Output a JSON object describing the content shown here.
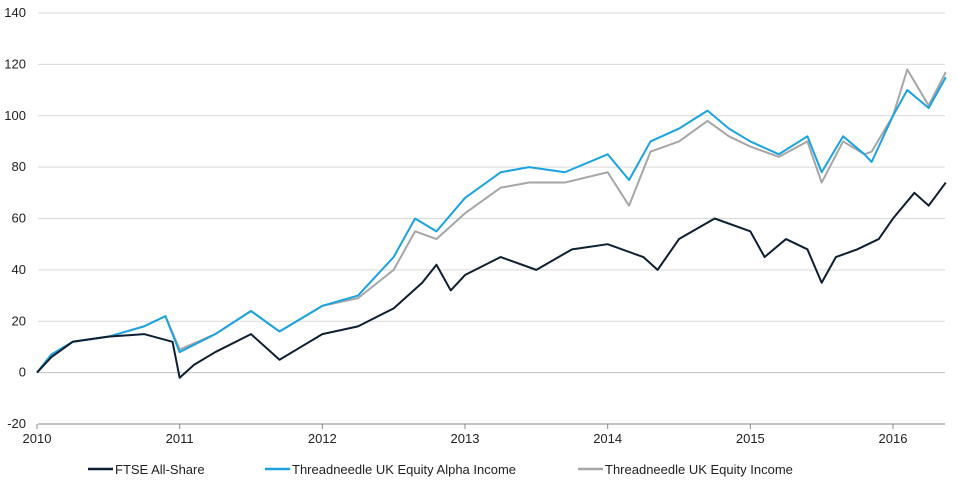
{
  "chart_data": {
    "type": "line",
    "title": "",
    "xlabel": "",
    "ylabel": "",
    "xlim": [
      2010,
      2016.4
    ],
    "ylim": [
      -20,
      140
    ],
    "yticks": [
      -20,
      0,
      20,
      40,
      60,
      80,
      100,
      120,
      140
    ],
    "xticks": [
      2010,
      2011,
      2012,
      2013,
      2014,
      2015,
      2016
    ],
    "grid": true,
    "legend_position": "bottom",
    "series": [
      {
        "name": "FTSE All-Share",
        "color": "#0d1f33",
        "x": [
          2010,
          2010.1,
          2010.25,
          2010.5,
          2010.75,
          2010.95,
          2011.0,
          2011.1,
          2011.25,
          2011.5,
          2011.7,
          2011.85,
          2012.0,
          2012.25,
          2012.5,
          2012.7,
          2012.8,
          2012.9,
          2013.0,
          2013.25,
          2013.5,
          2013.75,
          2014.0,
          2014.25,
          2014.35,
          2014.5,
          2014.75,
          2015.0,
          2015.1,
          2015.25,
          2015.4,
          2015.5,
          2015.6,
          2015.75,
          2015.9,
          2016.0,
          2016.15,
          2016.25,
          2016.37
        ],
        "y": [
          0,
          6,
          12,
          14,
          15,
          12,
          -2,
          3,
          8,
          15,
          5,
          10,
          15,
          18,
          25,
          35,
          42,
          32,
          38,
          45,
          40,
          48,
          50,
          45,
          40,
          52,
          60,
          55,
          45,
          52,
          48,
          35,
          45,
          48,
          52,
          60,
          70,
          65,
          74
        ]
      },
      {
        "name": "Threadneedle UK Equity Alpha Income",
        "color": "#1aa3e0",
        "x": [
          2010,
          2010.1,
          2010.25,
          2010.5,
          2010.75,
          2010.9,
          2011.0,
          2011.25,
          2011.5,
          2011.7,
          2012.0,
          2012.25,
          2012.5,
          2012.65,
          2012.8,
          2013.0,
          2013.25,
          2013.45,
          2013.7,
          2014.0,
          2014.15,
          2014.3,
          2014.5,
          2014.7,
          2014.85,
          2015.0,
          2015.2,
          2015.4,
          2015.5,
          2015.65,
          2015.8,
          2015.85,
          2016.0,
          2016.1,
          2016.25,
          2016.37
        ],
        "y": [
          0,
          7,
          12,
          14,
          18,
          22,
          8,
          15,
          24,
          16,
          26,
          30,
          45,
          60,
          55,
          68,
          78,
          80,
          78,
          85,
          75,
          90,
          95,
          102,
          95,
          90,
          85,
          92,
          78,
          92,
          85,
          82,
          100,
          110,
          103,
          115
        ]
      },
      {
        "name": "Threadneedle UK Equity Income",
        "color": "#a6a6a6",
        "x": [
          2010,
          2010.1,
          2010.25,
          2010.5,
          2010.75,
          2010.9,
          2011.0,
          2011.25,
          2011.5,
          2011.7,
          2012.0,
          2012.25,
          2012.5,
          2012.65,
          2012.8,
          2013.0,
          2013.25,
          2013.45,
          2013.7,
          2014.0,
          2014.15,
          2014.3,
          2014.5,
          2014.7,
          2014.85,
          2015.0,
          2015.2,
          2015.4,
          2015.5,
          2015.65,
          2015.8,
          2015.85,
          2016.0,
          2016.1,
          2016.25,
          2016.37
        ],
        "y": [
          0,
          7,
          12,
          14,
          18,
          22,
          9,
          15,
          24,
          16,
          26,
          29,
          40,
          55,
          52,
          62,
          72,
          74,
          74,
          78,
          65,
          86,
          90,
          98,
          92,
          88,
          84,
          90,
          74,
          90,
          85,
          86,
          100,
          118,
          104,
          117
        ]
      }
    ]
  }
}
